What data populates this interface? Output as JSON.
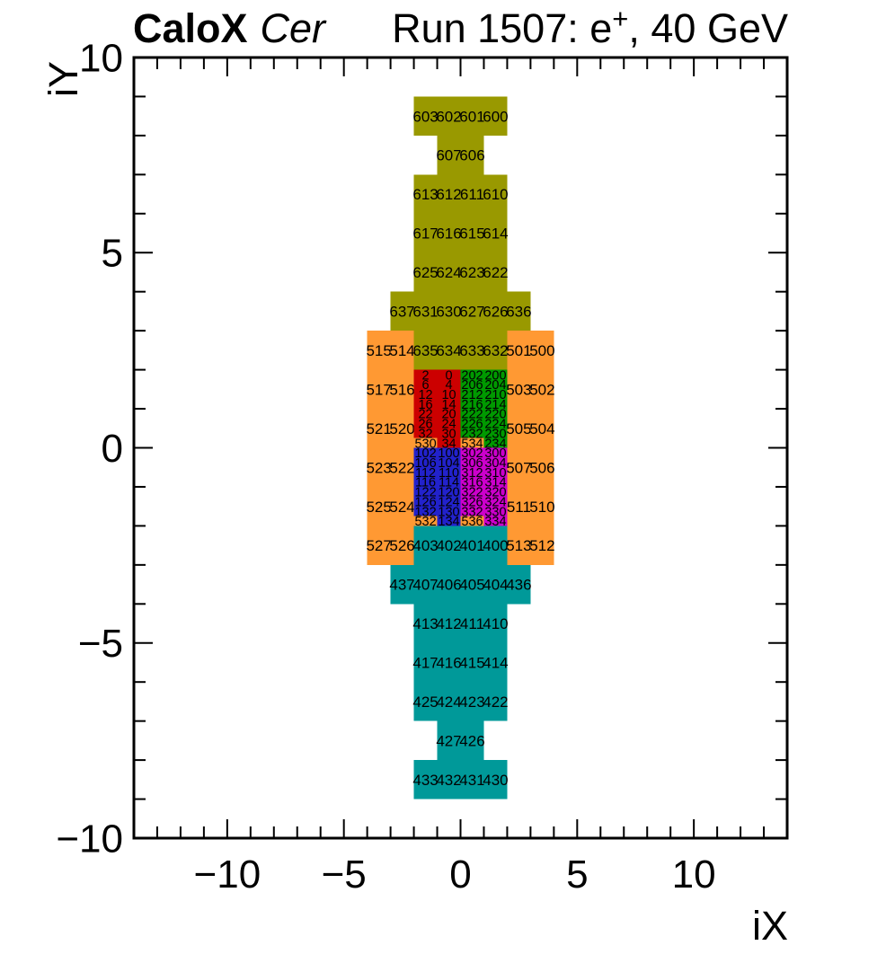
{
  "header": {
    "experiment": "CaloX",
    "subsystem": "Cer",
    "run_prefix": "Run 1507: e",
    "run_sup": "+",
    "run_suffix": ", 40 GeV"
  },
  "chart_data": {
    "type": "heatmap",
    "title": "CaloX Cer",
    "annotation": "Run 1507: e+, 40 GeV",
    "xlabel": "iX",
    "ylabel": "iY",
    "xlim": [
      -14,
      14
    ],
    "ylim": [
      -10,
      10
    ],
    "x_major_ticks": [
      -10,
      -5,
      0,
      5,
      10
    ],
    "y_major_ticks": [
      -10,
      -5,
      0,
      5,
      10
    ],
    "x_minor_step": 1,
    "y_minor_step": 1,
    "grid": false,
    "legend": "none",
    "colors": {
      "olive": "#999900",
      "orange": "#FF9933",
      "red": "#CC0000",
      "green": "#009900",
      "blue": "#2222CC",
      "magenta": "#CC00CC",
      "teal": "#009999"
    },
    "cell_groups": [
      {
        "name": "cer-top-tower",
        "color": "olive",
        "cell_w": 1,
        "cell_h": 1,
        "cells": [
          [
            603,
            -2,
            9
          ],
          [
            602,
            -1,
            9
          ],
          [
            601,
            0,
            9
          ],
          [
            600,
            1,
            9
          ],
          [
            607,
            -1,
            8
          ],
          [
            606,
            0,
            8
          ],
          [
            613,
            -2,
            7
          ],
          [
            612,
            -1,
            7
          ],
          [
            611,
            0,
            7
          ],
          [
            610,
            1,
            7
          ],
          [
            617,
            -2,
            6
          ],
          [
            616,
            -1,
            6
          ],
          [
            615,
            0,
            6
          ],
          [
            614,
            1,
            6
          ],
          [
            625,
            -2,
            5
          ],
          [
            624,
            -1,
            5
          ],
          [
            623,
            0,
            5
          ],
          [
            622,
            1,
            5
          ],
          [
            637,
            -3,
            4
          ],
          [
            631,
            -2,
            4
          ],
          [
            630,
            -1,
            4
          ],
          [
            627,
            0,
            4
          ],
          [
            626,
            1,
            4
          ],
          [
            636,
            2,
            4
          ],
          [
            635,
            -2,
            3
          ],
          [
            634,
            -1,
            3
          ],
          [
            633,
            0,
            3
          ],
          [
            632,
            1,
            3
          ]
        ]
      },
      {
        "name": "ring-left",
        "color": "orange",
        "cell_w": 1,
        "cell_h": 1,
        "cells": [
          [
            515,
            -4,
            3
          ],
          [
            514,
            -3,
            3
          ],
          [
            517,
            -4,
            2
          ],
          [
            516,
            -3,
            2
          ],
          [
            521,
            -4,
            1
          ],
          [
            520,
            -3,
            1
          ],
          [
            523,
            -4,
            0
          ],
          [
            522,
            -3,
            0
          ],
          [
            525,
            -4,
            -1
          ],
          [
            524,
            -3,
            -1
          ],
          [
            527,
            -4,
            -2
          ],
          [
            526,
            -3,
            -2
          ]
        ]
      },
      {
        "name": "ring-right",
        "color": "orange",
        "cell_w": 1,
        "cell_h": 1,
        "cells": [
          [
            501,
            2,
            3
          ],
          [
            500,
            3,
            3
          ],
          [
            503,
            2,
            2
          ],
          [
            502,
            3,
            2
          ],
          [
            505,
            2,
            1
          ],
          [
            504,
            3,
            1
          ],
          [
            507,
            2,
            0
          ],
          [
            506,
            3,
            0
          ],
          [
            511,
            2,
            -1
          ],
          [
            510,
            3,
            -1
          ],
          [
            513,
            2,
            -2
          ],
          [
            512,
            3,
            -2
          ]
        ]
      },
      {
        "name": "fine-red-quadrant",
        "color": "red",
        "cell_w": 1,
        "cell_h": 0.25,
        "cells": [
          [
            2,
            -2,
            2
          ],
          [
            0,
            -1,
            2
          ],
          [
            6,
            -2,
            1.75
          ],
          [
            4,
            -1,
            1.75
          ],
          [
            12,
            -2,
            1.5
          ],
          [
            10,
            -1,
            1.5
          ],
          [
            16,
            -2,
            1.25
          ],
          [
            14,
            -1,
            1.25
          ],
          [
            22,
            -2,
            1
          ],
          [
            20,
            -1,
            1
          ],
          [
            26,
            -2,
            0.75
          ],
          [
            24,
            -1,
            0.75
          ],
          [
            32,
            -2,
            0.5
          ],
          [
            30,
            -1,
            0.5
          ],
          [
            530,
            -2,
            0.25,
            "orange"
          ],
          [
            34,
            -1,
            0.25
          ]
        ]
      },
      {
        "name": "fine-green-quadrant",
        "color": "green",
        "cell_w": 1,
        "cell_h": 0.25,
        "cells": [
          [
            202,
            0,
            2
          ],
          [
            200,
            1,
            2
          ],
          [
            206,
            0,
            1.75
          ],
          [
            204,
            1,
            1.75
          ],
          [
            212,
            0,
            1.5
          ],
          [
            210,
            1,
            1.5
          ],
          [
            216,
            0,
            1.25
          ],
          [
            214,
            1,
            1.25
          ],
          [
            222,
            0,
            1
          ],
          [
            220,
            1,
            1
          ],
          [
            226,
            0,
            0.75
          ],
          [
            224,
            1,
            0.75
          ],
          [
            232,
            0,
            0.5
          ],
          [
            230,
            1,
            0.5
          ],
          [
            534,
            0,
            0.25,
            "orange"
          ],
          [
            234,
            1,
            0.25
          ]
        ]
      },
      {
        "name": "fine-blue-quadrant",
        "color": "blue",
        "cell_w": 1,
        "cell_h": 0.25,
        "cells": [
          [
            102,
            -2,
            0
          ],
          [
            100,
            -1,
            0
          ],
          [
            106,
            -2,
            -0.25
          ],
          [
            104,
            -1,
            -0.25
          ],
          [
            112,
            -2,
            -0.5
          ],
          [
            110,
            -1,
            -0.5
          ],
          [
            116,
            -2,
            -0.75
          ],
          [
            114,
            -1,
            -0.75
          ],
          [
            122,
            -2,
            -1
          ],
          [
            120,
            -1,
            -1
          ],
          [
            126,
            -2,
            -1.25
          ],
          [
            124,
            -1,
            -1.25
          ],
          [
            132,
            -2,
            -1.5
          ],
          [
            130,
            -1,
            -1.5
          ],
          [
            532,
            -2,
            -1.75,
            "orange"
          ],
          [
            134,
            -1,
            -1.75
          ]
        ]
      },
      {
        "name": "fine-magenta-quadrant",
        "color": "magenta",
        "cell_w": 1,
        "cell_h": 0.25,
        "cells": [
          [
            302,
            0,
            0
          ],
          [
            300,
            1,
            0
          ],
          [
            306,
            0,
            -0.25
          ],
          [
            304,
            1,
            -0.25
          ],
          [
            312,
            0,
            -0.5
          ],
          [
            310,
            1,
            -0.5
          ],
          [
            316,
            0,
            -0.75
          ],
          [
            314,
            1,
            -0.75
          ],
          [
            322,
            0,
            -1
          ],
          [
            320,
            1,
            -1
          ],
          [
            326,
            0,
            -1.25
          ],
          [
            324,
            1,
            -1.25
          ],
          [
            332,
            0,
            -1.5
          ],
          [
            330,
            1,
            -1.5
          ],
          [
            536,
            0,
            -1.75,
            "orange"
          ],
          [
            334,
            1,
            -1.75
          ]
        ]
      },
      {
        "name": "bottom-tower",
        "color": "teal",
        "cell_w": 1,
        "cell_h": 1,
        "cells": [
          [
            403,
            -2,
            -2
          ],
          [
            402,
            -1,
            -2
          ],
          [
            401,
            0,
            -2
          ],
          [
            400,
            1,
            -2
          ],
          [
            437,
            -3,
            -3
          ],
          [
            407,
            -2,
            -3
          ],
          [
            406,
            -1,
            -3
          ],
          [
            405,
            0,
            -3
          ],
          [
            404,
            1,
            -3
          ],
          [
            436,
            2,
            -3
          ],
          [
            413,
            -2,
            -4
          ],
          [
            412,
            -1,
            -4
          ],
          [
            411,
            0,
            -4
          ],
          [
            410,
            1,
            -4
          ],
          [
            417,
            -2,
            -5
          ],
          [
            416,
            -1,
            -5
          ],
          [
            415,
            0,
            -5
          ],
          [
            414,
            1,
            -5
          ],
          [
            425,
            -2,
            -6
          ],
          [
            424,
            -1,
            -6
          ],
          [
            423,
            0,
            -6
          ],
          [
            422,
            1,
            -6
          ],
          [
            427,
            -1,
            -7
          ],
          [
            426,
            0,
            -7
          ],
          [
            433,
            -2,
            -8
          ],
          [
            432,
            -1,
            -8
          ],
          [
            431,
            0,
            -8
          ],
          [
            430,
            1,
            -8
          ]
        ]
      }
    ]
  }
}
